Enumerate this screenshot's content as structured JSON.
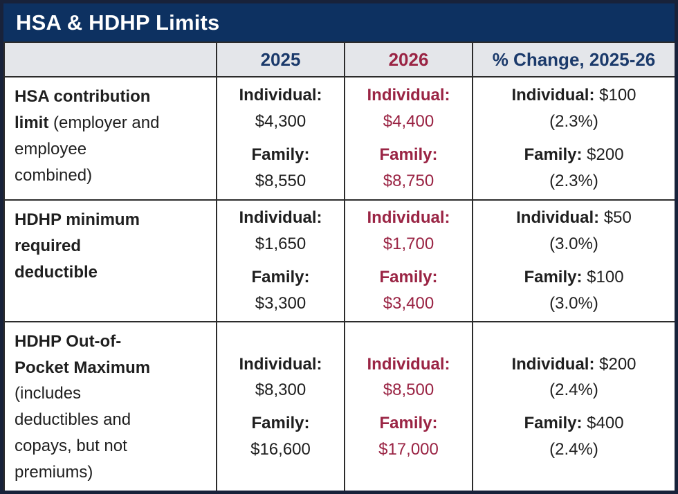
{
  "title": "HSA & HDHP Limits",
  "colors": {
    "navy_bar": "#0d3161",
    "navy_text": "#1b3a6b",
    "maroon": "#9a2444",
    "header_bg": "#e4e6ea",
    "text": "#1f1f1f",
    "border_outer": "#18223a",
    "grid": "#2b2b2b"
  },
  "header": {
    "col_label": "",
    "col_2025": "2025",
    "col_2026": "2026",
    "col_change": "% Change, 2025-26"
  },
  "rows": [
    {
      "label_bold": "HSA contribution\nlimit",
      "label_rest": " (employer and\nemployee\ncombined)",
      "cells": {
        "y2025": {
          "pairs": [
            {
              "label": "Individual:",
              "value": "$4,300"
            },
            {
              "label": "Family:",
              "value": "$8,550"
            }
          ]
        },
        "y2026": {
          "pairs": [
            {
              "label": "Individual:",
              "value": "$4,400"
            },
            {
              "label": "Family:",
              "value": "$8,750"
            }
          ]
        },
        "change": {
          "pairs": [
            {
              "label": "Individual:",
              "value": "$100",
              "pct": "(2.3%)"
            },
            {
              "label": "Family:",
              "value": "$200",
              "pct": "(2.3%)"
            }
          ]
        }
      }
    },
    {
      "label_bold": "HDHP minimum\nrequired\ndeductible",
      "label_rest": "",
      "cells": {
        "y2025": {
          "pairs": [
            {
              "label": "Individual:",
              "value": "$1,650"
            },
            {
              "label": "Family:",
              "value": "$3,300"
            }
          ]
        },
        "y2026": {
          "pairs": [
            {
              "label": "Individual:",
              "value": "$1,700"
            },
            {
              "label": "Family:",
              "value": "$3,400"
            }
          ]
        },
        "change": {
          "pairs": [
            {
              "label": "Individual:",
              "value": "$50",
              "pct": "(3.0%)"
            },
            {
              "label": "Family:",
              "value": "$100",
              "pct": "(3.0%)"
            }
          ]
        }
      }
    },
    {
      "label_bold": "HDHP Out-of-\nPocket Maximum",
      "label_rest": "\n(includes\ndeductibles and\ncopays, but not\npremiums)",
      "cells": {
        "y2025": {
          "pairs": [
            {
              "label": "Individual:",
              "value": "$8,300"
            },
            {
              "label": "Family:",
              "value": "$16,600"
            }
          ]
        },
        "y2026": {
          "pairs": [
            {
              "label": "Individual:",
              "value": "$8,500"
            },
            {
              "label": "Family:",
              "value": "$17,000"
            }
          ]
        },
        "change": {
          "pairs": [
            {
              "label": "Individual:",
              "value": "$200",
              "pct": "(2.4%)"
            },
            {
              "label": "Family:",
              "value": "$400",
              "pct": "(2.4%)"
            }
          ]
        }
      }
    }
  ]
}
